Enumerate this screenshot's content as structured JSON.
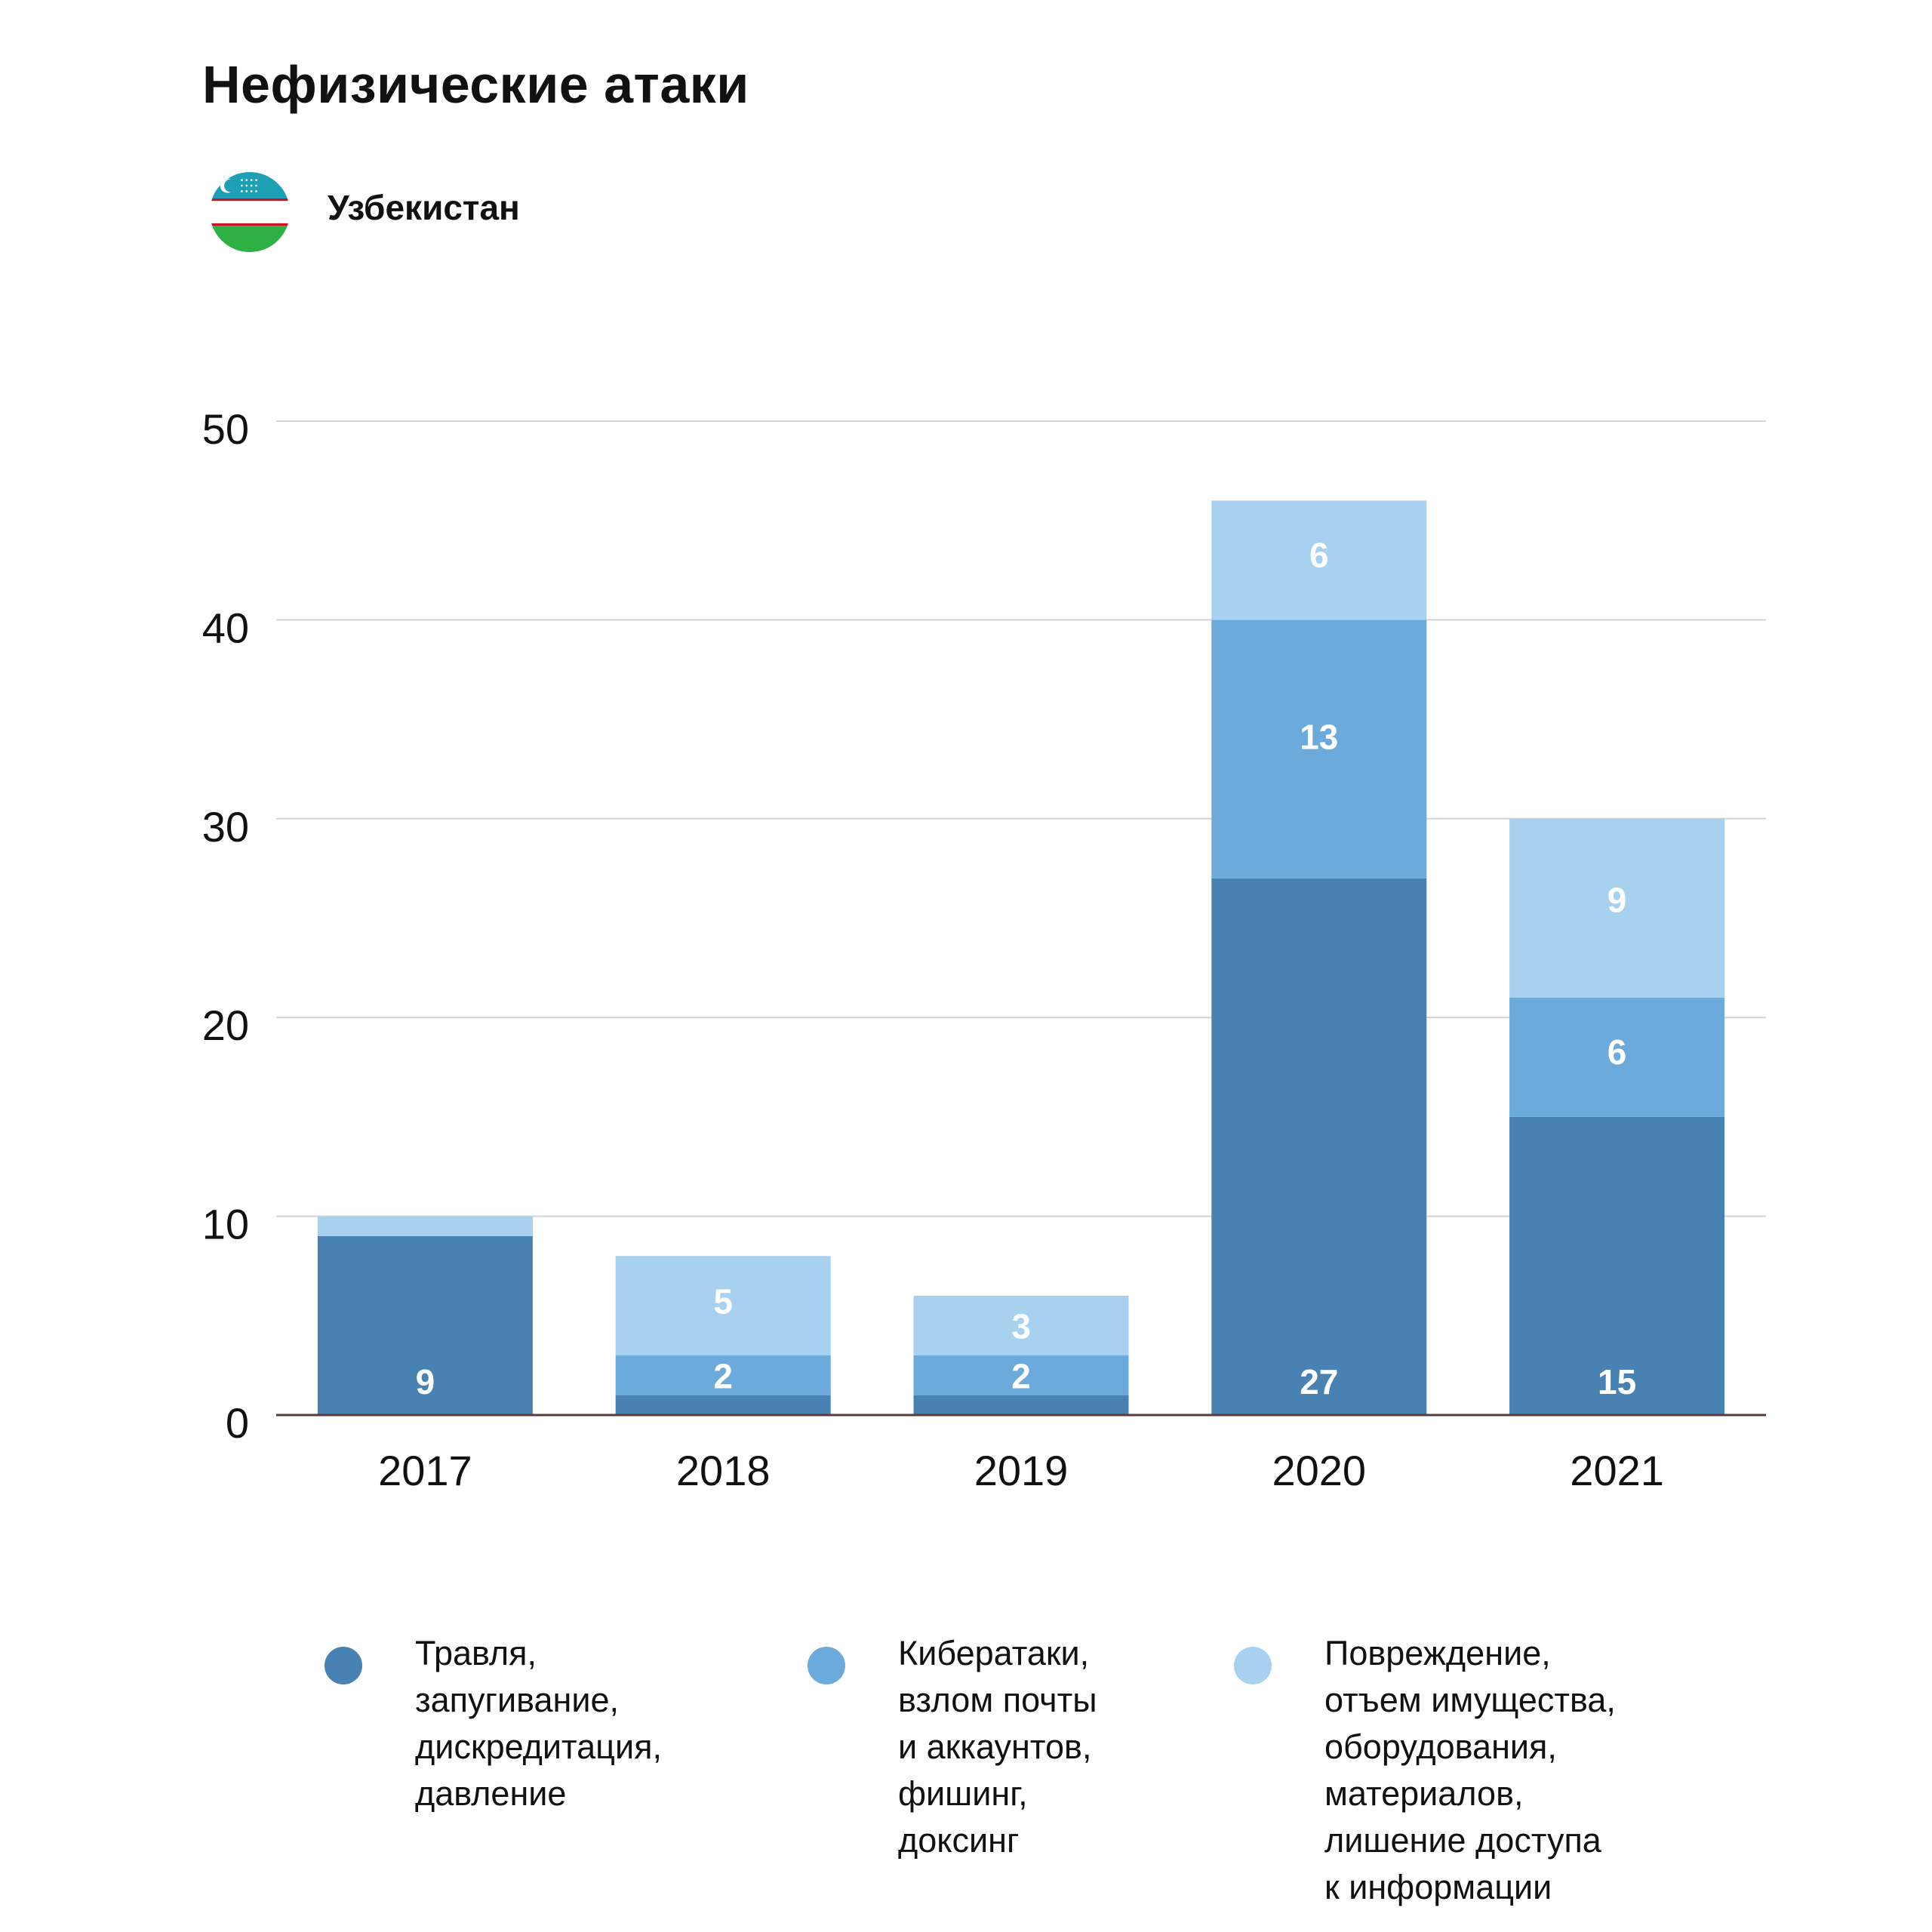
{
  "header": {
    "title": "Нефизические атаки",
    "country": "Узбекистан",
    "flag_icon": "uzbekistan-flag-icon"
  },
  "chart_data": {
    "type": "bar",
    "stacked": true,
    "categories": [
      "2017",
      "2018",
      "2019",
      "2020",
      "2021"
    ],
    "ylim": [
      0,
      50
    ],
    "yticks": [
      0,
      10,
      20,
      30,
      40,
      50
    ],
    "grid": true,
    "legend_position": "bottom",
    "series": [
      {
        "name": "Травля,\nзапугивание,\nдискредитация,\nдавление",
        "color": "#4782b3",
        "values": [
          9,
          1,
          1,
          27,
          15
        ],
        "labels": [
          "9",
          "",
          "",
          "27",
          "15"
        ]
      },
      {
        "name": "Кибератаки,\nвзлом почты\nи аккаунтов,\nфишинг,\nдоксинг",
        "color": "#6caadb",
        "values": [
          0,
          2,
          2,
          13,
          6
        ],
        "labels": [
          "",
          "2",
          "2",
          "13",
          "6"
        ]
      },
      {
        "name": "Повреждение,\nотъем имущества,\nоборудования,\nматериалов,\nлишение доступа\nк информации",
        "color": "#a8d0ef",
        "values": [
          1,
          5,
          3,
          6,
          9
        ],
        "labels": [
          "",
          "5",
          "3",
          "6",
          "9"
        ]
      }
    ]
  }
}
